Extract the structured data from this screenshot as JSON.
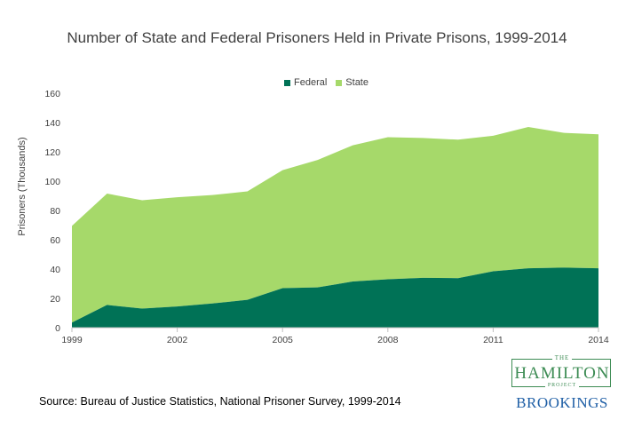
{
  "chart_data": {
    "type": "area",
    "stacked": true,
    "title": "Number of State and Federal Prisoners Held in Private Prisons, 1999-2014",
    "ylabel": "Prisoners (Thousands)",
    "xlabel": "",
    "xlim": [
      1999,
      2014
    ],
    "ylim": [
      0,
      160
    ],
    "x_ticks": [
      "1999",
      "2002",
      "2005",
      "2008",
      "2011",
      "2014"
    ],
    "y_ticks": [
      "0",
      "20",
      "40",
      "60",
      "80",
      "100",
      "120",
      "140",
      "160"
    ],
    "grid": false,
    "legend_position": "top-center",
    "x": [
      1999,
      2000,
      2001,
      2002,
      2003,
      2004,
      2005,
      2006,
      2007,
      2008,
      2009,
      2010,
      2011,
      2012,
      2013,
      2014
    ],
    "series": [
      {
        "name": "Federal",
        "color": "#007256",
        "values": [
          3.5,
          15.5,
          13.0,
          14.5,
          16.5,
          19.0,
          27.0,
          27.5,
          31.5,
          33.0,
          34.0,
          33.8,
          38.5,
          40.5,
          41.0,
          40.5
        ]
      },
      {
        "name": "State",
        "color": "#a6d96a",
        "values": [
          66.0,
          76.0,
          74.0,
          74.5,
          74.0,
          74.0,
          80.5,
          87.0,
          93.0,
          97.0,
          95.5,
          94.5,
          92.5,
          96.5,
          92.0,
          91.5
        ]
      }
    ]
  },
  "legend": {
    "federal": "Federal",
    "state": "State",
    "federal_color": "#007256",
    "state_color": "#a6d96a"
  },
  "source": "Source: Bureau of Justice Statistics, National Prisoner Survey, 1999-2014",
  "logo": {
    "the": "THE",
    "hamilton": "HAMILTON",
    "project": "PROJECT",
    "brookings": "BROOKINGS"
  }
}
